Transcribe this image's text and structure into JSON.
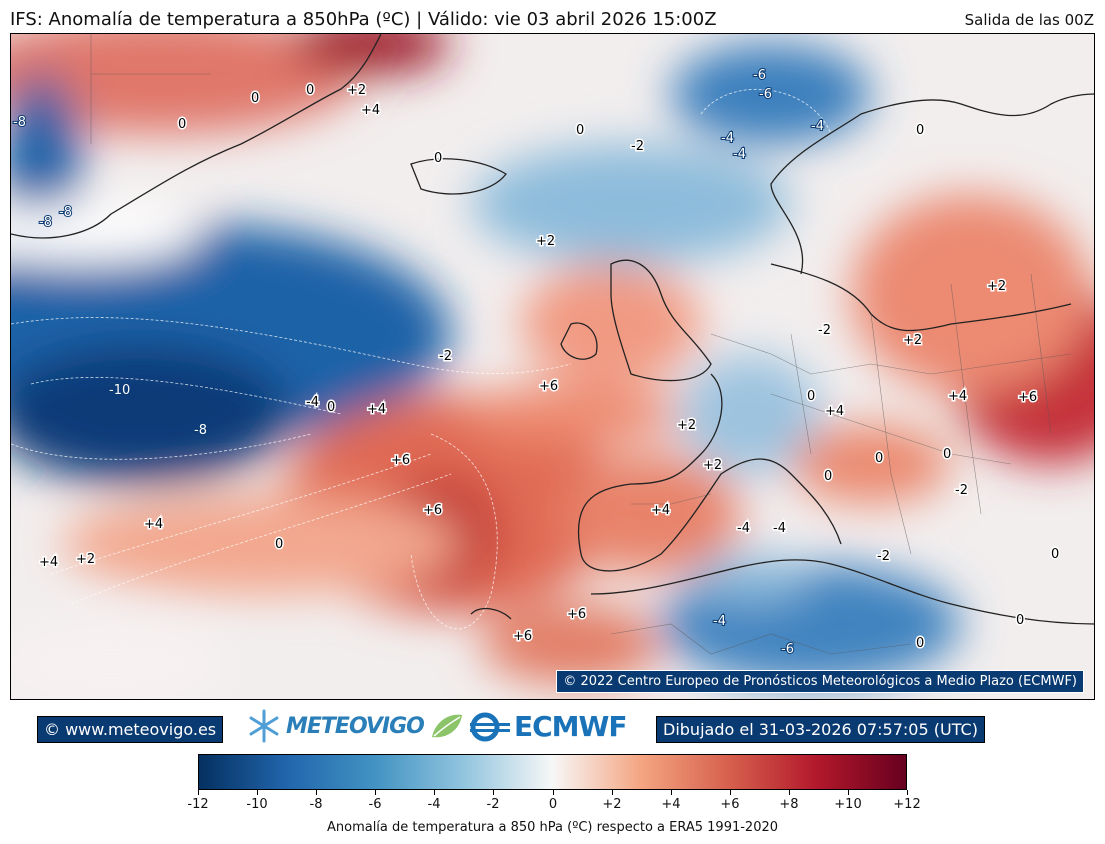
{
  "header": {
    "title": "IFS: Anomalía de temperatura a 850hPa  (ºC) | Válido: vie 03 abril 2026 15:00Z",
    "run": "Salida de las 00Z"
  },
  "map": {
    "copyright": "© 2022 Centro Europeo de Pronósticos Meteorológicos a Medio Plazo (ECMWF)",
    "contour_labels": [
      "0",
      "0",
      "+2",
      "+4",
      "0",
      "0",
      "-8",
      "-8",
      "-8",
      "0",
      "-2",
      "-6",
      "-6",
      "-4",
      "-4",
      "-4",
      "0",
      "+2",
      "+2",
      "-2",
      "+2",
      "-2",
      "+6",
      "-4",
      "0",
      "+4",
      "-10",
      "-8",
      "0",
      "+4",
      "+6",
      "+4",
      "+6",
      "+2",
      "+2",
      "+4",
      "0",
      "0",
      "-4",
      "-4",
      "-2",
      "+4",
      "+2",
      "0",
      "-2",
      "0",
      "0",
      "+6",
      "+6",
      "-4",
      "-6",
      "0",
      "0",
      "+4",
      "+6"
    ]
  },
  "footer": {
    "site": "© www.meteovigo.es",
    "brand_meteovigo": "METEOVIGO",
    "brand_ecmwf": "ECMWF",
    "drawn": "Dibujado el 31-03-2026 07:57:05 (UTC)"
  },
  "colorbar": {
    "ticks": [
      "-12",
      "-10",
      "-8",
      "-6",
      "-4",
      "-2",
      "0",
      "+2",
      "+4",
      "+6",
      "+8",
      "+10",
      "+12"
    ],
    "label": "Anomalía de temperatura a 850 hPa (ºC) respecto a ERA5 1991-2020",
    "colors": [
      "#053061",
      "#2166ac",
      "#4393c3",
      "#92c5de",
      "#f7f7f7",
      "#f4a582",
      "#d6604d",
      "#b2182b",
      "#67001f"
    ]
  }
}
